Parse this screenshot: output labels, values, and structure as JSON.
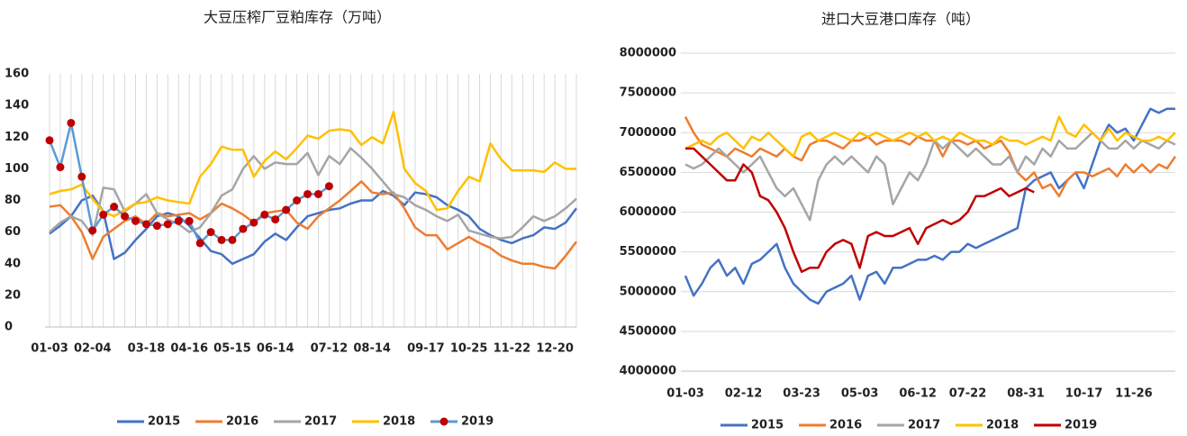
{
  "chart_data": [
    {
      "type": "line",
      "title": "大豆压榨厂豆粕库存（万吨）",
      "grid": "x",
      "categories": [
        "01-03",
        null,
        null,
        null,
        "02-04",
        null,
        null,
        null,
        null,
        "03-18",
        null,
        null,
        null,
        "04-16",
        null,
        null,
        null,
        "05-15",
        null,
        null,
        null,
        "06-14",
        null,
        null,
        null,
        null,
        "07-12",
        null,
        null,
        null,
        "08-14",
        null,
        null,
        null,
        null,
        "09-17",
        null,
        null,
        null,
        "10-25",
        null,
        null,
        null,
        "11-22",
        null,
        null,
        null,
        "12-20",
        null,
        null
      ],
      "ylim": [
        0,
        160
      ],
      "yticks": [
        0,
        20,
        40,
        60,
        80,
        100,
        120,
        140,
        160
      ],
      "legend": "bottom",
      "series": [
        {
          "name": "2015",
          "color": "#4472c4",
          "values": [
            59,
            64,
            70,
            80,
            83,
            73,
            43,
            47,
            55,
            62,
            70,
            72,
            70,
            64,
            56,
            48,
            46,
            40,
            43,
            46,
            54,
            59,
            55,
            63,
            70,
            72,
            74,
            75,
            78,
            80,
            80,
            86,
            83,
            77,
            85,
            84,
            82,
            77,
            74,
            70,
            62,
            58,
            55,
            53,
            56,
            58,
            63,
            62,
            66,
            75
          ]
        },
        {
          "name": "2016",
          "color": "#ed7d31",
          "values": [
            76,
            77,
            70,
            60,
            43,
            57,
            62,
            67,
            70,
            65,
            72,
            70,
            71,
            72,
            68,
            72,
            78,
            75,
            71,
            66,
            72,
            73,
            74,
            66,
            62,
            70,
            75,
            80,
            86,
            92,
            85,
            84,
            85,
            75,
            63,
            58,
            58,
            49,
            53,
            57,
            53,
            50,
            45,
            42,
            40,
            40,
            38,
            37,
            45,
            54
          ]
        },
        {
          "name": "2017",
          "color": "#a5a5a5",
          "values": [
            60,
            66,
            70,
            67,
            58,
            88,
            87,
            73,
            78,
            84,
            72,
            68,
            65,
            60,
            63,
            72,
            83,
            87,
            100,
            108,
            100,
            104,
            103,
            103,
            110,
            96,
            108,
            103,
            113,
            107,
            100,
            92,
            84,
            82,
            77,
            74,
            70,
            67,
            71,
            61,
            59,
            57,
            56,
            57,
            63,
            70,
            67,
            70,
            75,
            81
          ]
        },
        {
          "name": "2018",
          "color": "#ffc000",
          "values": [
            84,
            86,
            87,
            90,
            81,
            73,
            70,
            74,
            78,
            79,
            82,
            80,
            79,
            78,
            95,
            103,
            114,
            112,
            112,
            95,
            105,
            111,
            106,
            113,
            121,
            119,
            124,
            125,
            124,
            115,
            120,
            116,
            136,
            100,
            91,
            86,
            74,
            75,
            86,
            95,
            92,
            116,
            106,
            99,
            99,
            99,
            98,
            104,
            100,
            100
          ]
        },
        {
          "name": "2019",
          "color": "#5b9bd5",
          "marker": "circle",
          "marker_color": "#c00000",
          "values": [
            118,
            101,
            129,
            95,
            61,
            71,
            76,
            70,
            67,
            65,
            64,
            65,
            67,
            67,
            53,
            60,
            55,
            55,
            62,
            66,
            71,
            68,
            74,
            80,
            84,
            84,
            89,
            null,
            null,
            null,
            null,
            null,
            null,
            null,
            null,
            null,
            null,
            null,
            null,
            null,
            null,
            null,
            null,
            null,
            null,
            null,
            null,
            null,
            null,
            null
          ]
        }
      ]
    },
    {
      "type": "line",
      "title": "进口大豆港口库存（吨）",
      "grid": "y",
      "categories": [
        "01-03",
        null,
        null,
        null,
        null,
        null,
        null,
        "02-12",
        null,
        null,
        null,
        null,
        null,
        null,
        "03-23",
        null,
        null,
        null,
        null,
        null,
        null,
        "05-03",
        null,
        null,
        null,
        null,
        null,
        null,
        "06-12",
        null,
        null,
        null,
        null,
        null,
        "07-22",
        null,
        null,
        null,
        null,
        null,
        null,
        "08-31",
        null,
        null,
        null,
        null,
        null,
        null,
        "10-17",
        null,
        null,
        null,
        null,
        null,
        "11-26",
        null,
        null,
        null,
        null,
        null
      ],
      "ylim": [
        4000000,
        8000000
      ],
      "yticks": [
        4000000,
        4500000,
        5000000,
        5500000,
        6000000,
        6500000,
        7000000,
        7500000,
        8000000
      ],
      "legend": "bottom",
      "series": [
        {
          "name": "2015",
          "color": "#4472c4",
          "values": [
            5200000,
            4950000,
            5100000,
            5300000,
            5400000,
            5200000,
            5300000,
            5100000,
            5350000,
            5400000,
            5500000,
            5600000,
            5300000,
            5100000,
            5000000,
            4900000,
            4850000,
            5000000,
            5050000,
            5100000,
            5200000,
            4900000,
            5200000,
            5250000,
            5100000,
            5300000,
            5300000,
            5350000,
            5400000,
            5400000,
            5450000,
            5400000,
            5500000,
            5500000,
            5600000,
            5550000,
            5600000,
            5650000,
            5700000,
            5750000,
            5800000,
            6300000,
            6400000,
            6450000,
            6500000,
            6300000,
            6400000,
            6500000,
            6300000,
            6600000,
            6900000,
            7100000,
            7000000,
            7050000,
            6900000,
            7100000,
            7300000,
            7250000,
            7300000,
            7300000
          ]
        },
        {
          "name": "2016",
          "color": "#ed7d31",
          "values": [
            7200000,
            7000000,
            6850000,
            6800000,
            6750000,
            6700000,
            6800000,
            6750000,
            6700000,
            6800000,
            6750000,
            6700000,
            6800000,
            6700000,
            6650000,
            6850000,
            6900000,
            6900000,
            6850000,
            6800000,
            6900000,
            6900000,
            6950000,
            6850000,
            6900000,
            6900000,
            6900000,
            6850000,
            6950000,
            6900000,
            6900000,
            6700000,
            6900000,
            6900000,
            6850000,
            6900000,
            6800000,
            6850000,
            6900000,
            6750000,
            6500000,
            6400000,
            6500000,
            6300000,
            6350000,
            6200000,
            6400000,
            6500000,
            6500000,
            6450000,
            6500000,
            6550000,
            6450000,
            6600000,
            6500000,
            6600000,
            6500000,
            6600000,
            6550000,
            6700000
          ]
        },
        {
          "name": "2017",
          "color": "#a5a5a5",
          "values": [
            6600000,
            6550000,
            6600000,
            6700000,
            6800000,
            6700000,
            6600000,
            6500000,
            6600000,
            6700000,
            6500000,
            6300000,
            6200000,
            6300000,
            6100000,
            5900000,
            6400000,
            6600000,
            6700000,
            6600000,
            6700000,
            6600000,
            6500000,
            6700000,
            6600000,
            6100000,
            6300000,
            6500000,
            6400000,
            6600000,
            6900000,
            6800000,
            6900000,
            6800000,
            6700000,
            6800000,
            6700000,
            6600000,
            6600000,
            6700000,
            6500000,
            6700000,
            6600000,
            6800000,
            6700000,
            6900000,
            6800000,
            6800000,
            6900000,
            7000000,
            6900000,
            6800000,
            6800000,
            6900000,
            6800000,
            6900000,
            6850000,
            6800000,
            6900000,
            6850000
          ]
        },
        {
          "name": "2018",
          "color": "#ffc000",
          "values": [
            6800000,
            6850000,
            6900000,
            6850000,
            6950000,
            7000000,
            6900000,
            6800000,
            6950000,
            6900000,
            7000000,
            6900000,
            6800000,
            6700000,
            6950000,
            7000000,
            6900000,
            6950000,
            7000000,
            6950000,
            6900000,
            7000000,
            6950000,
            7000000,
            6950000,
            6900000,
            6950000,
            7000000,
            6950000,
            7000000,
            6900000,
            6950000,
            6900000,
            7000000,
            6950000,
            6900000,
            6900000,
            6850000,
            6950000,
            6900000,
            6900000,
            6850000,
            6900000,
            6950000,
            6900000,
            7200000,
            7000000,
            6950000,
            7100000,
            7000000,
            6900000,
            7050000,
            6900000,
            7000000,
            6950000,
            6900000,
            6900000,
            6950000,
            6900000,
            7000000
          ]
        },
        {
          "name": "2019",
          "color": "#c00000",
          "values": [
            6800000,
            6800000,
            6700000,
            6600000,
            6500000,
            6400000,
            6400000,
            6600000,
            6500000,
            6200000,
            6150000,
            6000000,
            5800000,
            5500000,
            5250000,
            5300000,
            5300000,
            5500000,
            5600000,
            5650000,
            5600000,
            5300000,
            5700000,
            5750000,
            5700000,
            5700000,
            5750000,
            5800000,
            5600000,
            5800000,
            5850000,
            5900000,
            5850000,
            5900000,
            6000000,
            6200000,
            6200000,
            6250000,
            6300000,
            6200000,
            6250000,
            6300000,
            6250000,
            null,
            null,
            null,
            null,
            null,
            null,
            null,
            null,
            null,
            null,
            null,
            null,
            null,
            null,
            null,
            null,
            null
          ]
        }
      ]
    }
  ]
}
